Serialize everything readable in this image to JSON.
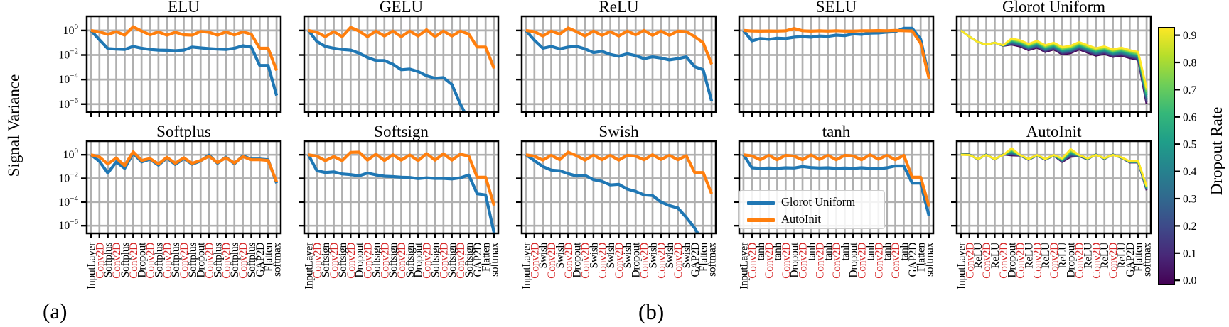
{
  "figure": {
    "ylabel": "Signal Variance",
    "panel_label_a": "(a)",
    "panel_label_b": "(b)",
    "colors": {
      "glorot": "#1f77b4",
      "autoinit": "#ff7f0e",
      "grid": "#b0b0b0",
      "axis": "#000000",
      "conv_label": "#d62728",
      "viridis": [
        "#440154",
        "#482878",
        "#3e4989",
        "#31688e",
        "#26828e",
        "#1f9e89",
        "#35b779",
        "#6ece58",
        "#b5de2b",
        "#fde725"
      ]
    },
    "legend": {
      "entries": [
        {
          "label": "Glorot Uniform",
          "color": "#1f77b4"
        },
        {
          "label": "AutoInit",
          "color": "#ff7f0e"
        }
      ]
    },
    "colorbar": {
      "label": "Dropout Rate",
      "ticks": [
        "0.9",
        "0.8",
        "0.7",
        "0.6",
        "0.5",
        "0.4",
        "0.3",
        "0.2",
        "0.1",
        "0.0"
      ]
    },
    "ytick_base": "10",
    "ytick_exponents": [
      "0",
      "−2",
      "−4",
      "−6"
    ]
  },
  "chart_data": [
    {
      "type": "line",
      "title": "ELU",
      "row": 0,
      "col": 0,
      "ylog_ticks": [
        0,
        -2,
        -4,
        -6
      ],
      "series": [
        {
          "name": "Glorot Uniform",
          "color": "#1f77b4",
          "log10_values": [
            0,
            -0.75,
            -1.48,
            -1.52,
            -1.55,
            -1.3,
            -1.45,
            -1.55,
            -1.6,
            -1.62,
            -1.65,
            -1.6,
            -1.35,
            -1.42,
            -1.48,
            -1.52,
            -1.55,
            -1.45,
            -1.25,
            -1.35,
            -2.85,
            -2.85,
            -5.3
          ]
        },
        {
          "name": "AutoInit",
          "color": "#ff7f0e",
          "log10_values": [
            0,
            -0.12,
            -0.32,
            -0.1,
            -0.38,
            0.3,
            -0.05,
            -0.35,
            -0.12,
            -0.38,
            -0.15,
            -0.35,
            -0.38,
            -0.08,
            -0.15,
            -0.38,
            -0.12,
            -0.36,
            -0.12,
            -0.3,
            -1.45,
            -1.45,
            -3.25
          ]
        }
      ]
    },
    {
      "type": "line",
      "title": "GELU",
      "row": 0,
      "col": 1,
      "series": [
        {
          "name": "Glorot Uniform",
          "color": "#1f77b4",
          "log10_values": [
            0,
            -0.9,
            -1.3,
            -1.45,
            -1.55,
            -1.6,
            -1.85,
            -2.2,
            -2.45,
            -2.45,
            -2.75,
            -3.2,
            -3.15,
            -3.35,
            -3.7,
            -3.9,
            -3.85,
            -4.4,
            -6.0,
            -7.3,
            -7.5,
            -7.6,
            -7.7
          ]
        },
        {
          "name": "AutoInit",
          "color": "#ff7f0e",
          "log10_values": [
            0,
            -0.15,
            -0.5,
            -0.1,
            -0.5,
            0.25,
            -0.05,
            -0.5,
            -0.05,
            -0.45,
            -0.05,
            -0.5,
            -0.05,
            -0.45,
            0.05,
            -0.5,
            -0.05,
            -0.45,
            -0.05,
            -0.3,
            -1.35,
            -1.35,
            -3.1
          ]
        }
      ]
    },
    {
      "type": "line",
      "title": "ReLU",
      "row": 0,
      "col": 2,
      "series": [
        {
          "name": "Glorot Uniform",
          "color": "#1f77b4",
          "log10_values": [
            0,
            -0.8,
            -1.45,
            -1.3,
            -1.5,
            -1.35,
            -1.3,
            -1.5,
            -1.8,
            -1.7,
            -1.95,
            -2.1,
            -1.9,
            -2.05,
            -2.3,
            -2.15,
            -2.25,
            -2.4,
            -2.3,
            -2.15,
            -2.95,
            -3.2,
            -5.75
          ]
        },
        {
          "name": "AutoInit",
          "color": "#ff7f0e",
          "log10_values": [
            0,
            -0.1,
            -0.45,
            -0.05,
            -0.3,
            0.2,
            -0.1,
            -0.45,
            -0.05,
            -0.4,
            -0.1,
            -0.45,
            -0.05,
            -0.35,
            0,
            -0.4,
            -0.05,
            -0.4,
            -0.05,
            -0.1,
            -0.5,
            -1.0,
            -2.75
          ]
        }
      ]
    },
    {
      "type": "line",
      "title": "SELU",
      "row": 0,
      "col": 3,
      "series": [
        {
          "name": "Glorot Uniform",
          "color": "#1f77b4",
          "log10_values": [
            0,
            -0.85,
            -0.66,
            -0.72,
            -0.63,
            -0.66,
            -0.55,
            -0.5,
            -0.55,
            -0.45,
            -0.48,
            -0.38,
            -0.42,
            -0.28,
            -0.32,
            -0.22,
            -0.2,
            -0.14,
            -0.1,
            0.18,
            0.18,
            -0.72,
            -3.8
          ]
        },
        {
          "name": "AutoInit",
          "color": "#ff7f0e",
          "log10_values": [
            0,
            -0.04,
            -0.06,
            -0.04,
            -0.05,
            -0.03,
            0.16,
            -0.02,
            -0.06,
            -0.03,
            -0.05,
            -0.02,
            -0.05,
            -0.06,
            -0.02,
            -0.03,
            -0.01,
            -0.02,
            0,
            -0.02,
            -0.04,
            -1.05,
            -3.95
          ]
        }
      ]
    },
    {
      "type": "line",
      "title": "Glorot Uniform",
      "row": 0,
      "col": 4,
      "band": {
        "legend": "Dropout Rate",
        "rates": [
          0.0,
          0.1,
          0.2,
          0.3,
          0.4,
          0.5,
          0.6,
          0.7,
          0.8,
          0.9
        ],
        "top_log10": [
          0,
          -0.5,
          -0.95,
          -1.15,
          -1.0,
          -1.2,
          -0.65,
          -0.8,
          -1.1,
          -0.85,
          -1.2,
          -1.0,
          -1.35,
          -1.25,
          -0.95,
          -1.2,
          -1.45,
          -1.3,
          -1.55,
          -1.4,
          -1.6,
          -1.75,
          -4.7
        ],
        "spread_log10": [
          0,
          0,
          0,
          0,
          0,
          0.05,
          0.5,
          0.5,
          0.5,
          0.55,
          0.55,
          0.55,
          0.6,
          0.6,
          0.6,
          0.6,
          0.6,
          0.6,
          0.6,
          0.65,
          0.65,
          0.65,
          1.3
        ]
      }
    },
    {
      "type": "line",
      "title": "Softplus",
      "row": 1,
      "col": 0,
      "x_labels": [
        "InputLayer",
        "Conv2D",
        "Softplus",
        "Conv2D",
        "Softplus",
        "Conv2D",
        "Dropout",
        "Conv2D",
        "Softplus",
        "Conv2D",
        "Softplus",
        "Conv2D",
        "Softplus",
        "Dropout",
        "Conv2D",
        "Softplus",
        "Conv2D",
        "Softplus",
        "Conv2D",
        "Softplus",
        "GAP2D",
        "Flatten",
        "softmax"
      ],
      "series": [
        {
          "name": "Glorot Uniform",
          "color": "#1f77b4",
          "log10_values": [
            0,
            -0.55,
            -1.55,
            -0.6,
            -1.15,
            0.13,
            -0.6,
            -0.38,
            -0.88,
            -0.28,
            -0.82,
            -0.32,
            -0.8,
            -0.52,
            -0.04,
            -0.72,
            -0.2,
            -0.76,
            -0.1,
            -0.36,
            -0.36,
            -0.42,
            -2.4
          ]
        },
        {
          "name": "AutoInit",
          "color": "#ff7f0e",
          "log10_values": [
            0,
            -0.18,
            -0.78,
            -0.28,
            -0.92,
            0.25,
            -0.48,
            -0.32,
            -0.78,
            -0.22,
            -0.72,
            -0.26,
            -0.72,
            -0.48,
            -0.12,
            -0.66,
            -0.26,
            -0.7,
            -0.16,
            -0.42,
            -0.42,
            -0.48,
            -2.3
          ]
        }
      ]
    },
    {
      "type": "line",
      "title": "Softsign",
      "row": 1,
      "col": 1,
      "x_labels": [
        "InputLayer",
        "Conv2D",
        "Softsign",
        "Conv2D",
        "Softsign",
        "Conv2D",
        "Dropout",
        "Conv2D",
        "Softsign",
        "Conv2D",
        "Softsign",
        "Conv2D",
        "Softsign",
        "Dropout",
        "Conv2D",
        "Softsign",
        "Conv2D",
        "Softsign",
        "Conv2D",
        "Softsign",
        "GAP2D",
        "Flatten",
        "softmax"
      ],
      "series": [
        {
          "name": "Glorot Uniform",
          "color": "#1f77b4",
          "log10_values": [
            0,
            -1.35,
            -1.5,
            -1.45,
            -1.62,
            -1.68,
            -1.78,
            -1.55,
            -1.7,
            -1.82,
            -1.85,
            -1.9,
            -1.92,
            -2.02,
            -1.95,
            -2.0,
            -2.0,
            -2.05,
            -1.95,
            -1.72,
            -3.3,
            -3.4,
            -6.6
          ]
        },
        {
          "name": "AutoInit",
          "color": "#ff7f0e",
          "log10_values": [
            0,
            -0.12,
            -0.5,
            -0.15,
            -0.5,
            0.2,
            0.22,
            -0.45,
            0.05,
            -0.48,
            0,
            -0.45,
            -0.02,
            -0.5,
            0.1,
            -0.45,
            0.08,
            -0.45,
            0.05,
            -0.12,
            -1.9,
            -1.9,
            -4.3
          ]
        }
      ]
    },
    {
      "type": "line",
      "title": "Swish",
      "row": 1,
      "col": 2,
      "x_labels": [
        "InputLayer",
        "Conv2D",
        "Swish",
        "Conv2D",
        "Swish",
        "Conv2D",
        "Dropout",
        "Conv2D",
        "Swish",
        "Conv2D",
        "Swish",
        "Conv2D",
        "Swish",
        "Dropout",
        "Conv2D",
        "Swish",
        "Conv2D",
        "Swish",
        "Conv2D",
        "Swish",
        "GAP2D",
        "Flatten",
        "softmax"
      ],
      "series": [
        {
          "name": "Glorot Uniform",
          "color": "#1f77b4",
          "log10_values": [
            0,
            -0.5,
            -1.0,
            -1.3,
            -1.35,
            -1.6,
            -1.8,
            -1.75,
            -2.1,
            -2.25,
            -2.55,
            -2.5,
            -2.9,
            -3.1,
            -3.4,
            -3.45,
            -4.0,
            -4.3,
            -4.5,
            -5.3,
            -6.2,
            -7.4,
            -7.6
          ]
        },
        {
          "name": "AutoInit",
          "color": "#ff7f0e",
          "log10_values": [
            0,
            -0.12,
            -0.45,
            -0.05,
            -0.42,
            0.22,
            -0.08,
            -0.45,
            -0.03,
            -0.42,
            -0.05,
            -0.45,
            -0.05,
            -0.12,
            -0.42,
            0,
            -0.4,
            -0.05,
            -0.42,
            -0.08,
            -1.5,
            -1.5,
            -3.3
          ]
        }
      ]
    },
    {
      "type": "line",
      "title": "tanh",
      "row": 1,
      "col": 3,
      "x_labels": [
        "InputLayer",
        "Conv2D",
        "tanh",
        "Conv2D",
        "tanh",
        "Conv2D",
        "Dropout",
        "Conv2D",
        "tanh",
        "Conv2D",
        "tanh",
        "Conv2D",
        "tanh",
        "Dropout",
        "Conv2D",
        "tanh",
        "Conv2D",
        "tanh",
        "Conv2D",
        "tanh",
        "GAP2D",
        "Flatten",
        "softmax"
      ],
      "series": [
        {
          "name": "Glorot Uniform",
          "color": "#1f77b4",
          "log10_values": [
            0,
            -1.1,
            -1.15,
            -1.12,
            -1.15,
            -1.1,
            -1.12,
            -1.0,
            -1.08,
            -1.12,
            -1.1,
            -1.15,
            -1.12,
            -1.15,
            -1.1,
            -1.15,
            -1.18,
            -1.1,
            -0.95,
            -0.95,
            -2.4,
            -2.4,
            -5.2
          ]
        },
        {
          "name": "AutoInit",
          "color": "#ff7f0e",
          "log10_values": [
            0,
            -0.1,
            -0.42,
            -0.05,
            -0.42,
            -0.05,
            -0.12,
            -0.42,
            -0.02,
            -0.4,
            -0.05,
            -0.42,
            -0.05,
            -0.1,
            -0.42,
            0,
            -0.38,
            -0.05,
            -0.42,
            -0.05,
            -1.9,
            -1.9,
            -4.4
          ]
        }
      ]
    },
    {
      "type": "line",
      "title": "AutoInit",
      "row": 1,
      "col": 4,
      "x_labels": [
        "InputLayer",
        "Conv2D",
        "ReLU",
        "Conv2D",
        "ReLU",
        "Conv2D",
        "Dropout",
        "Conv2D",
        "ReLU",
        "Conv2D",
        "ReLU",
        "Conv2D",
        "ReLU",
        "Dropout",
        "Conv2D",
        "ReLU",
        "Conv2D",
        "ReLU",
        "Conv2D",
        "ReLU",
        "GAP2D",
        "Flatten",
        "softmax"
      ],
      "band": {
        "legend": "Dropout Rate",
        "rates": [
          0.0,
          0.1,
          0.2,
          0.3,
          0.4,
          0.5,
          0.6,
          0.7,
          0.8,
          0.9
        ],
        "top_log10": [
          0,
          -0.02,
          -0.35,
          -0.02,
          -0.35,
          -0.02,
          0.55,
          -0.02,
          -0.35,
          -0.02,
          -0.35,
          -0.02,
          -0.3,
          0.48,
          -0.02,
          -0.3,
          -0.02,
          -0.28,
          -0.02,
          -0.22,
          -0.55,
          -0.55,
          -2.65
        ],
        "spread_log10": [
          -0.05,
          -0.05,
          0.05,
          -0.05,
          0.05,
          -0.05,
          0.6,
          0.05,
          0.08,
          0.05,
          0.08,
          0.05,
          0.3,
          0.65,
          0.1,
          0.08,
          -0.05,
          0.08,
          -0.05,
          0.05,
          0.1,
          0.1,
          0.35
        ]
      }
    }
  ]
}
